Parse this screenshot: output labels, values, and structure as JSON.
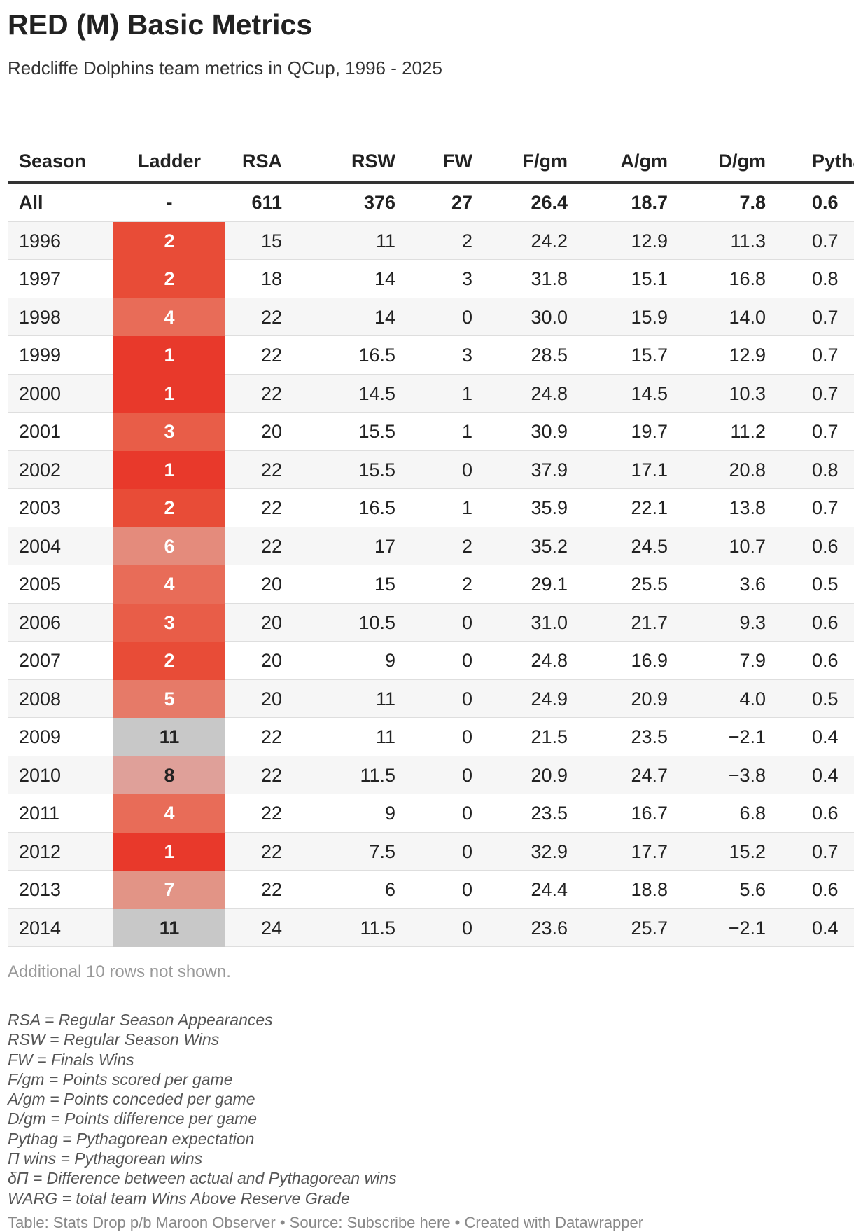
{
  "header": {
    "title": "RED (M) Basic Metrics",
    "subtitle": "Redcliffe Dolphins team metrics in QCup, 1996 - 2025"
  },
  "table": {
    "columns": [
      "Season",
      "Ladder",
      "RSA",
      "RSW",
      "FW",
      "F/gm",
      "A/gm",
      "D/gm",
      "Pythag"
    ],
    "rows": [
      [
        "All",
        "-",
        "611",
        "376",
        "27",
        "26.4",
        "18.7",
        "7.8",
        "0.6"
      ],
      [
        "1996",
        "2",
        "15",
        "11",
        "2",
        "24.2",
        "12.9",
        "11.3",
        "0.7"
      ],
      [
        "1997",
        "2",
        "18",
        "14",
        "3",
        "31.8",
        "15.1",
        "16.8",
        "0.8"
      ],
      [
        "1998",
        "4",
        "22",
        "14",
        "0",
        "30.0",
        "15.9",
        "14.0",
        "0.7"
      ],
      [
        "1999",
        "1",
        "22",
        "16.5",
        "3",
        "28.5",
        "15.7",
        "12.9",
        "0.7"
      ],
      [
        "2000",
        "1",
        "22",
        "14.5",
        "1",
        "24.8",
        "14.5",
        "10.3",
        "0.7"
      ],
      [
        "2001",
        "3",
        "20",
        "15.5",
        "1",
        "30.9",
        "19.7",
        "11.2",
        "0.7"
      ],
      [
        "2002",
        "1",
        "22",
        "15.5",
        "0",
        "37.9",
        "17.1",
        "20.8",
        "0.8"
      ],
      [
        "2003",
        "2",
        "22",
        "16.5",
        "1",
        "35.9",
        "22.1",
        "13.8",
        "0.7"
      ],
      [
        "2004",
        "6",
        "22",
        "17",
        "2",
        "35.2",
        "24.5",
        "10.7",
        "0.6"
      ],
      [
        "2005",
        "4",
        "20",
        "15",
        "2",
        "29.1",
        "25.5",
        "3.6",
        "0.5"
      ],
      [
        "2006",
        "3",
        "20",
        "10.5",
        "0",
        "31.0",
        "21.7",
        "9.3",
        "0.6"
      ],
      [
        "2007",
        "2",
        "20",
        "9",
        "0",
        "24.8",
        "16.9",
        "7.9",
        "0.6"
      ],
      [
        "2008",
        "5",
        "20",
        "11",
        "0",
        "24.9",
        "20.9",
        "4.0",
        "0.5"
      ],
      [
        "2009",
        "11",
        "22",
        "11",
        "0",
        "21.5",
        "23.5",
        "−2.1",
        "0.4"
      ],
      [
        "2010",
        "8",
        "22",
        "11.5",
        "0",
        "20.9",
        "24.7",
        "−3.8",
        "0.4"
      ],
      [
        "2011",
        "4",
        "22",
        "9",
        "0",
        "23.5",
        "16.7",
        "6.8",
        "0.6"
      ],
      [
        "2012",
        "1",
        "22",
        "7.5",
        "0",
        "32.9",
        "17.7",
        "15.2",
        "0.7"
      ],
      [
        "2013",
        "7",
        "22",
        "6",
        "0",
        "24.4",
        "18.8",
        "5.6",
        "0.6"
      ],
      [
        "2014",
        "11",
        "24",
        "11.5",
        "0",
        "23.6",
        "25.7",
        "−2.1",
        "0.4"
      ]
    ],
    "ladder_colors": [
      null,
      "#e84c37",
      "#e84c37",
      "#e86c58",
      "#e8392b",
      "#e8392b",
      "#e85d48",
      "#e8392b",
      "#e84c37",
      "#e48b7c",
      "#e86c58",
      "#e85d48",
      "#e84c37",
      "#e67a68",
      "#c8c8c8",
      "#dfa099",
      "#e86c58",
      "#e8392b",
      "#e29486",
      "#c8c8c8"
    ],
    "ladder_text_colors": [
      null,
      "#ffffff",
      "#ffffff",
      "#ffffff",
      "#ffffff",
      "#ffffff",
      "#ffffff",
      "#ffffff",
      "#ffffff",
      "#ffffff",
      "#ffffff",
      "#ffffff",
      "#ffffff",
      "#ffffff",
      "#222222",
      "#222222",
      "#ffffff",
      "#ffffff",
      "#ffffff",
      "#222222"
    ]
  },
  "footnote": "Additional 10 rows not shown.",
  "notes": [
    "RSA = Regular Season Appearances",
    "RSW = Regular Season Wins",
    "FW = Finals Wins",
    "F/gm = Points scored per game",
    "A/gm = Points conceded per game",
    "D/gm = Points difference per game",
    "Pythag = Pythagorean expectation",
    "Π wins = Pythagorean wins",
    "δΠ = Difference between actual and Pythagorean wins",
    "WARG = total team Wins Above Reserve Grade"
  ],
  "footer": "Table: Stats Drop p/b Maroon Observer • Source: Subscribe here • Created with Datawrapper"
}
